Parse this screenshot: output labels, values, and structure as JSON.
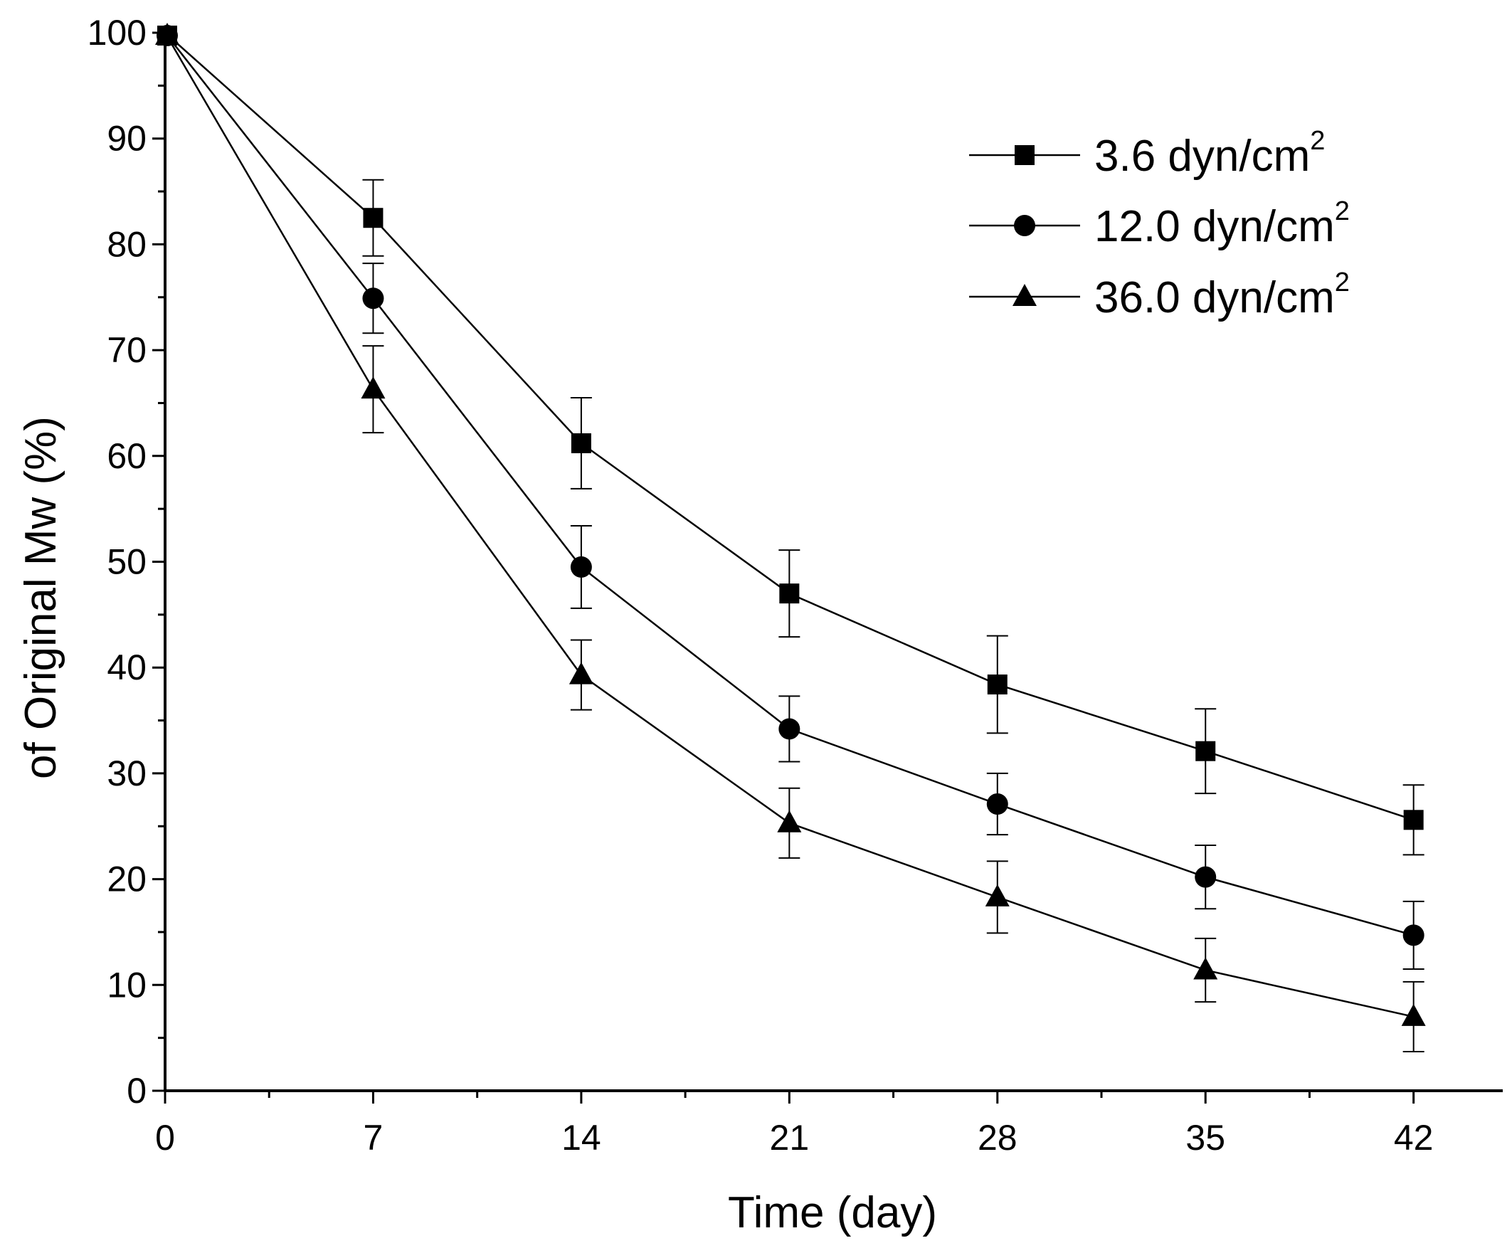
{
  "chart_data": {
    "type": "line",
    "title": "",
    "xlabel": "Time (day)",
    "ylabel": "of Original Mw (%)",
    "xlim": [
      0,
      45
    ],
    "ylim": [
      0,
      100
    ],
    "x_ticks": [
      0,
      7,
      14,
      21,
      28,
      35,
      42
    ],
    "y_ticks": [
      0,
      10,
      20,
      30,
      40,
      50,
      60,
      70,
      80,
      90,
      100
    ],
    "x_tick_labels": [
      "0",
      "7",
      "14",
      "21",
      "28",
      "35",
      "42"
    ],
    "y_tick_labels": [
      "0",
      "10",
      "20",
      "30",
      "40",
      "50",
      "60",
      "70",
      "80",
      "90",
      "100"
    ],
    "grid": false,
    "legend_position": "top-right",
    "x": [
      0,
      7,
      14,
      21,
      28,
      35,
      42
    ],
    "series": [
      {
        "name": "3.6 dyn/cm",
        "name_sup": "2",
        "marker": "square",
        "values": [
          100,
          82.5,
          61.2,
          47.0,
          38.4,
          32.1,
          25.6
        ],
        "errors": [
          0,
          3.6,
          4.3,
          4.1,
          4.6,
          4.0,
          3.3
        ]
      },
      {
        "name": "12.0 dyn/cm",
        "name_sup": "2",
        "marker": "circle",
        "values": [
          100,
          74.9,
          49.5,
          34.2,
          27.1,
          20.2,
          14.7
        ],
        "errors": [
          0,
          3.3,
          3.9,
          3.1,
          2.9,
          3.0,
          3.2
        ]
      },
      {
        "name": "36.0 dyn/cm",
        "name_sup": "2",
        "marker": "triangle",
        "values": [
          100,
          66.3,
          39.3,
          25.3,
          18.3,
          11.4,
          7.0
        ],
        "errors": [
          0,
          4.1,
          3.3,
          3.3,
          3.4,
          3.0,
          3.3
        ]
      }
    ]
  }
}
